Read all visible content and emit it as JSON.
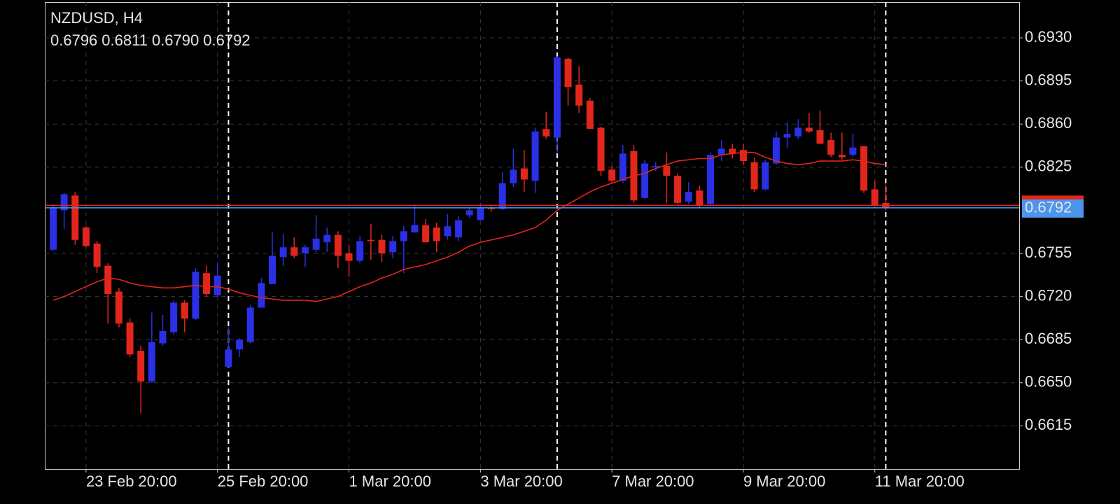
{
  "chart_data": {
    "type": "candlestick",
    "title": "NZDUSD, H4",
    "ohlc_labels": [
      "0.6796",
      "0.6811",
      "0.6790",
      "0.6792"
    ],
    "categories": [
      null,
      null,
      null,
      "23 Feb 20:00",
      null,
      null,
      null,
      null,
      null,
      null,
      null,
      null,
      null,
      null,
      null,
      "25 Feb 20:00",
      null,
      null,
      null,
      null,
      null,
      null,
      null,
      null,
      null,
      null,
      null,
      "1 Mar 20:00",
      null,
      null,
      null,
      null,
      null,
      null,
      null,
      null,
      null,
      null,
      null,
      "3 Mar 20:00",
      null,
      null,
      null,
      null,
      null,
      null,
      null,
      null,
      null,
      null,
      null,
      "7 Mar 20:00",
      null,
      null,
      null,
      null,
      null,
      null,
      null,
      null,
      null,
      null,
      null,
      "9 Mar 20:00",
      null,
      null,
      null,
      null,
      null,
      null,
      null,
      null,
      null,
      null,
      null,
      "11 Mar 20:00",
      null
    ],
    "open": [
      0.6758,
      0.679,
      0.6802,
      0.6776,
      0.6763,
      0.6745,
      0.6724,
      0.6699,
      0.6676,
      0.6651,
      0.6682,
      0.6691,
      0.6715,
      0.6702,
      0.6739,
      0.6721,
      0.6663,
      0.6677,
      0.6683,
      0.6711,
      0.673,
      0.6752,
      0.676,
      0.6755,
      0.6758,
      0.6764,
      0.677,
      0.6755,
      0.6749,
      0.6766,
      0.6766,
      0.6756,
      0.6765,
      0.6772,
      0.6778,
      0.6776,
      0.6769,
      0.6768,
      0.6786,
      0.6782,
      0.6792,
      0.6791,
      0.6812,
      0.6824,
      0.6814,
      0.6856,
      0.6849,
      0.6913,
      0.6892,
      0.6879,
      0.6857,
      0.6823,
      0.6814,
      0.6838,
      0.68,
      0.6825,
      0.6826,
      0.6818,
      0.6797,
      0.6806,
      0.6795,
      0.6835,
      0.684,
      0.6839,
      0.6829,
      0.6807,
      0.6828,
      0.6849,
      0.685,
      0.6857,
      0.6855,
      0.6847,
      0.6835,
      0.6835,
      0.6842,
      0.6807,
      0.6796
    ],
    "high": [
      0.6795,
      0.6804,
      0.6805,
      0.6777,
      0.6765,
      0.6747,
      0.6727,
      0.6702,
      0.668,
      0.6707,
      0.6705,
      0.6717,
      0.6717,
      0.6743,
      0.6745,
      0.6747,
      0.6695,
      0.6686,
      0.6713,
      0.6735,
      0.6772,
      0.6771,
      0.6768,
      0.6762,
      0.6786,
      0.6776,
      0.6773,
      0.6762,
      0.6769,
      0.6779,
      0.677,
      0.6769,
      0.6777,
      0.6795,
      0.6783,
      0.678,
      0.6787,
      0.6785,
      0.6793,
      0.6796,
      0.6794,
      0.6821,
      0.684,
      0.6839,
      0.6857,
      0.687,
      0.6915,
      0.6914,
      0.6907,
      0.6881,
      0.6858,
      0.6826,
      0.6843,
      0.6843,
      0.6831,
      0.6829,
      0.6837,
      0.682,
      0.6813,
      0.681,
      0.6837,
      0.6847,
      0.6844,
      0.6844,
      0.6833,
      0.6831,
      0.6854,
      0.6861,
      0.6864,
      0.6869,
      0.6871,
      0.6853,
      0.6853,
      0.6852,
      0.6842,
      0.6814,
      0.6811
    ],
    "low": [
      0.6757,
      0.6775,
      0.6762,
      0.676,
      0.6739,
      0.6698,
      0.6695,
      0.6671,
      0.6625,
      0.665,
      0.668,
      0.6689,
      0.6691,
      0.6701,
      0.672,
      0.672,
      0.6662,
      0.6671,
      0.6682,
      0.6711,
      0.673,
      0.6745,
      0.6751,
      0.6744,
      0.6756,
      0.6756,
      0.6743,
      0.6736,
      0.6747,
      0.675,
      0.6748,
      0.6751,
      0.6739,
      0.6772,
      0.6764,
      0.6756,
      0.6766,
      0.6765,
      0.6784,
      0.6782,
      0.6789,
      0.679,
      0.6809,
      0.6805,
      0.6804,
      0.6848,
      0.6837,
      0.6875,
      0.6869,
      0.6856,
      0.6818,
      0.6812,
      0.6812,
      0.6796,
      0.6799,
      0.6822,
      0.6796,
      0.6795,
      0.6795,
      0.6792,
      0.6794,
      0.683,
      0.6832,
      0.6827,
      0.6805,
      0.6806,
      0.6827,
      0.6841,
      0.6848,
      0.6853,
      0.6844,
      0.6833,
      0.6831,
      0.6833,
      0.6804,
      0.6793,
      0.679
    ],
    "close": [
      0.6792,
      0.6803,
      0.6766,
      0.6761,
      0.6744,
      0.6722,
      0.6698,
      0.6673,
      0.6651,
      0.6683,
      0.6692,
      0.6715,
      0.6702,
      0.674,
      0.6722,
      0.6737,
      0.6677,
      0.6685,
      0.6711,
      0.6731,
      0.6753,
      0.676,
      0.6753,
      0.676,
      0.6767,
      0.677,
      0.6753,
      0.6749,
      0.6765,
      0.6765,
      0.6755,
      0.6765,
      0.6773,
      0.6778,
      0.6764,
      0.6765,
      0.6777,
      0.6782,
      0.679,
      0.6792,
      0.6791,
      0.6812,
      0.6823,
      0.6815,
      0.6854,
      0.685,
      0.6914,
      0.689,
      0.6875,
      0.6856,
      0.6822,
      0.6814,
      0.6836,
      0.6798,
      0.6828,
      0.6826,
      0.6818,
      0.6796,
      0.6805,
      0.6794,
      0.6835,
      0.684,
      0.6836,
      0.683,
      0.6807,
      0.6829,
      0.6849,
      0.6852,
      0.6857,
      0.6854,
      0.6844,
      0.6835,
      0.6833,
      0.6841,
      0.6806,
      0.6794,
      0.6792
    ],
    "up_color": "#2b2fe6",
    "down_color": "#e3261c",
    "moving_average": {
      "color": "#e3261c",
      "values": [
        0.6717,
        0.672,
        0.6724,
        0.6728,
        0.6732,
        0.6735,
        0.6734,
        0.6731,
        0.6729,
        0.6728,
        0.6727,
        0.6727,
        0.6728,
        0.6729,
        0.6728,
        0.6728,
        0.6726,
        0.6723,
        0.6721,
        0.6719,
        0.6718,
        0.6717,
        0.6717,
        0.6717,
        0.6716,
        0.6718,
        0.672,
        0.6724,
        0.6728,
        0.6731,
        0.6735,
        0.6738,
        0.6742,
        0.6744,
        0.6746,
        0.6749,
        0.6752,
        0.6756,
        0.6761,
        0.6764,
        0.6766,
        0.6768,
        0.677,
        0.6773,
        0.6776,
        0.6782,
        0.679,
        0.6795,
        0.68,
        0.6805,
        0.6809,
        0.6812,
        0.6815,
        0.6818,
        0.682,
        0.6824,
        0.6827,
        0.683,
        0.6831,
        0.6832,
        0.6832,
        0.6835,
        0.6836,
        0.6837,
        0.6837,
        0.6833,
        0.683,
        0.6828,
        0.6827,
        0.6828,
        0.683,
        0.683,
        0.683,
        0.6831,
        0.683,
        0.6828,
        0.6827
      ]
    },
    "bid": {
      "value": 0.6792,
      "label": "0.6792",
      "color": "#4d94ec"
    },
    "ask": {
      "value": 0.6794,
      "color": "#e3261c"
    },
    "ylim": [
      0.658,
      0.6959
    ],
    "yticks": [
      {
        "value": 0.693,
        "label": "0.6930"
      },
      {
        "value": 0.6895,
        "label": "0.6895"
      },
      {
        "value": 0.686,
        "label": "0.6860"
      },
      {
        "value": 0.6825,
        "label": "0.6825"
      },
      {
        "value": 0.6755,
        "label": "0.6755"
      },
      {
        "value": 0.672,
        "label": "0.6720"
      },
      {
        "value": 0.6685,
        "label": "0.6685"
      },
      {
        "value": 0.665,
        "label": "0.6650"
      },
      {
        "value": 0.6615,
        "label": "0.6615"
      }
    ],
    "grid": true
  }
}
